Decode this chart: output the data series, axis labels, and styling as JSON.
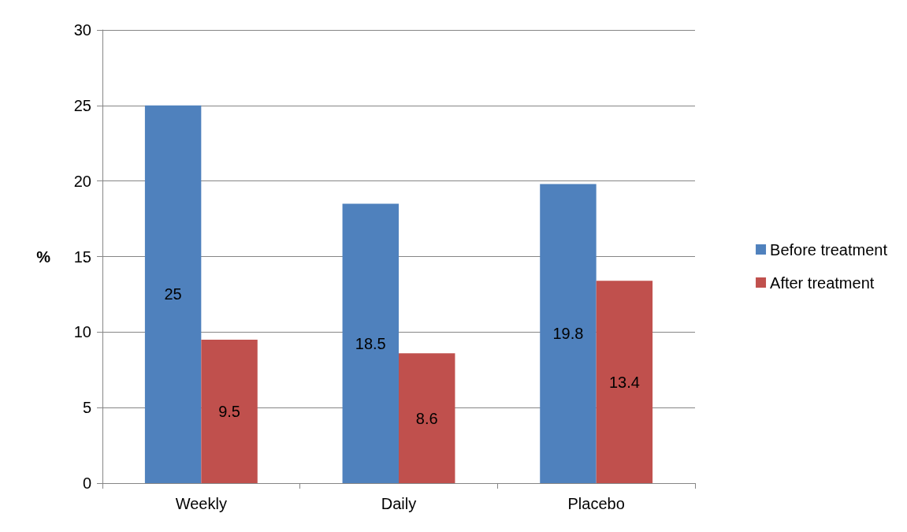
{
  "chart_data": {
    "type": "bar",
    "ylabel": "%",
    "categories": [
      "Weekly",
      "Daily",
      "Placebo"
    ],
    "series": [
      {
        "name": "Before treatment",
        "color": "#4f81bd",
        "values": [
          25,
          18.5,
          19.8
        ]
      },
      {
        "name": "After treatment",
        "color": "#c0504d",
        "values": [
          9.5,
          8.6,
          13.4
        ]
      }
    ],
    "ylim": [
      0,
      30
    ],
    "yticks": [
      0,
      5,
      10,
      15,
      20,
      25,
      30
    ],
    "grid": "y",
    "legend": "right",
    "data_labels": true
  }
}
